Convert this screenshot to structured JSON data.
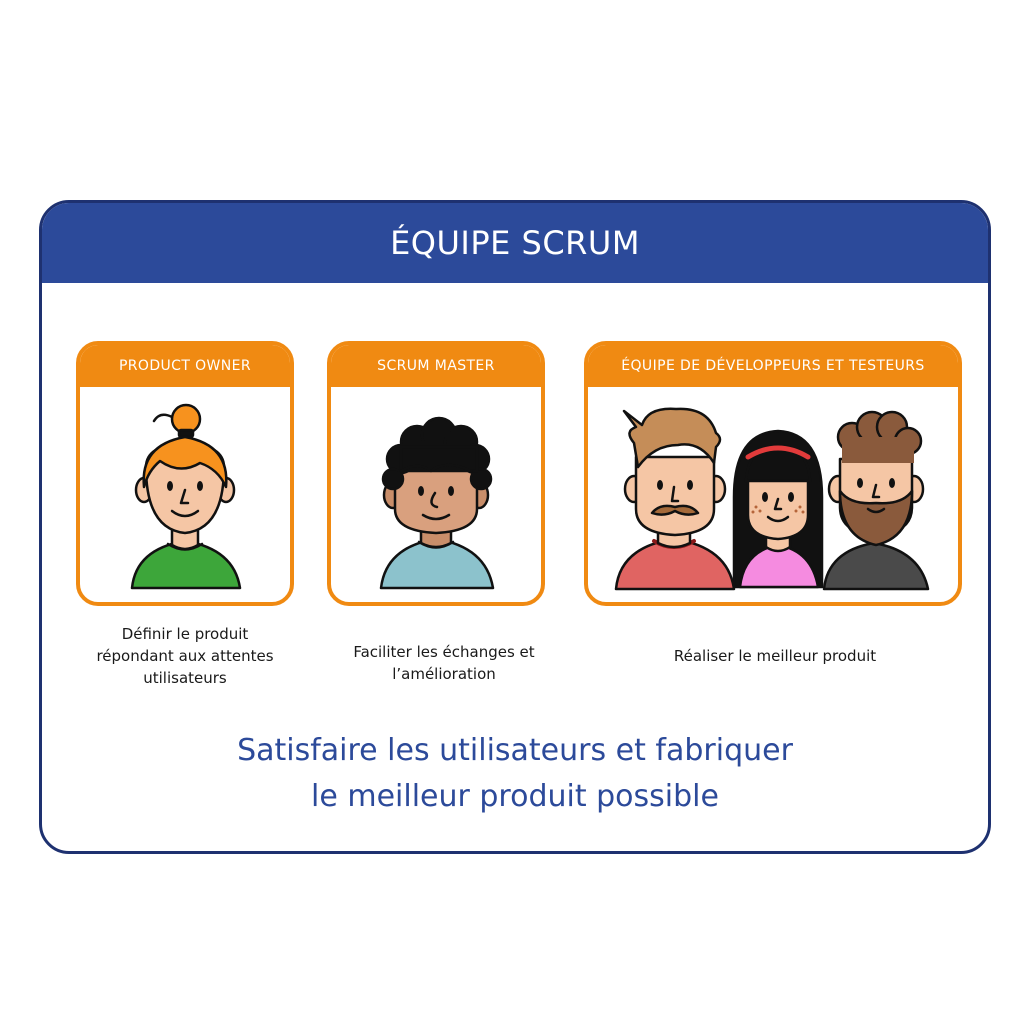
{
  "header": {
    "title": "ÉQUIPE SCRUM"
  },
  "roles": [
    {
      "title": "PRODUCT OWNER",
      "description": "Définir le produit\nrépondant aux attentes\nutilisateurs",
      "icon": "woman-orange-bun-avatar"
    },
    {
      "title": "SCRUM MASTER",
      "description": "Faciliter les échanges et\nl’amélioration",
      "icon": "man-curly-hair-avatar"
    },
    {
      "title": "ÉQUIPE DE DÉVELOPPEURS ET TESTEURS",
      "description": "Réaliser le meilleur produit",
      "icon": "team-of-three-avatars"
    }
  ],
  "tagline": "Satisfaire les utilisateurs et fabriquer\nle meilleur produit possible",
  "colors": {
    "header_blue": "#2c4a9a",
    "border_navy": "#1e3170",
    "card_orange": "#f08a12",
    "text_dark": "#1a1a1a"
  }
}
